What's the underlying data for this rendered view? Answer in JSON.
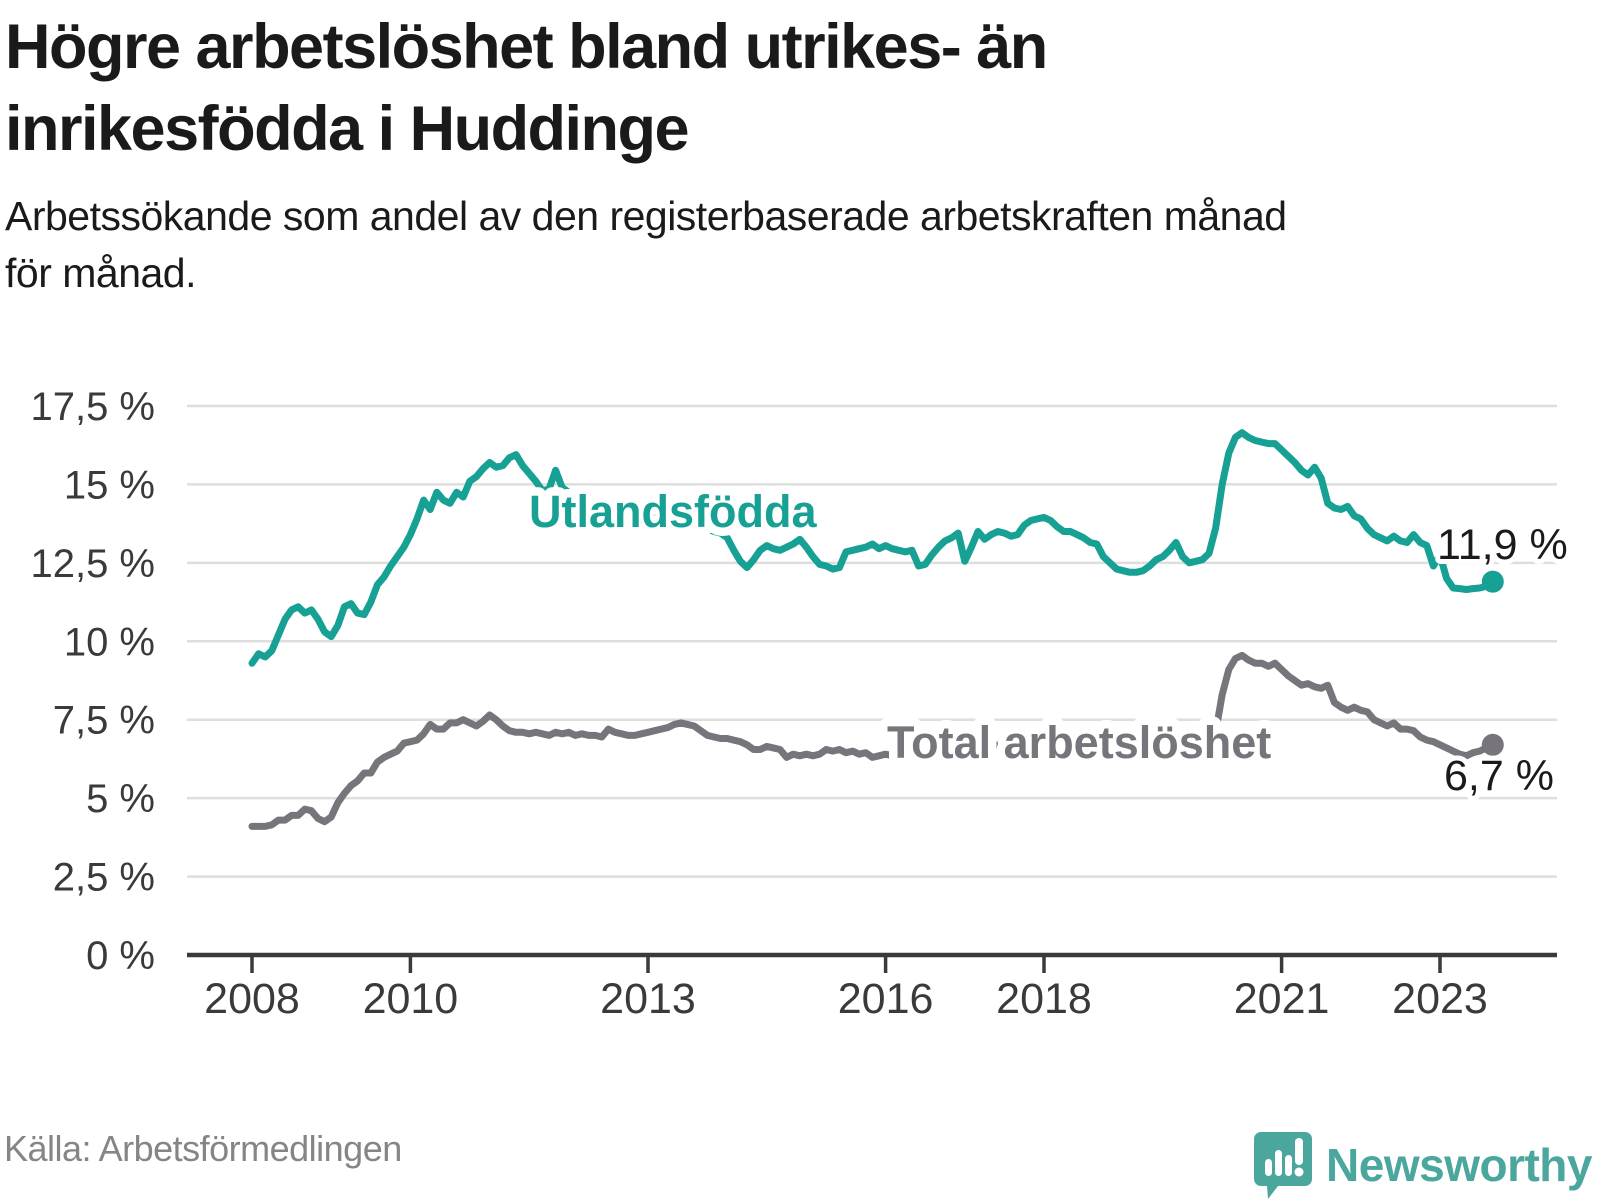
{
  "header": {
    "title_line1": "Högre arbetslöshet bland utrikes- än",
    "title_line2": "inrikesfödda i Huddinge",
    "subtitle_line1": "Arbetssökande som andel av den registerbaserade arbetskraften månad",
    "subtitle_line2": "för månad."
  },
  "footer": {
    "source": "Källa: Arbetsförmedlingen",
    "brand_name": "Newsworthy"
  },
  "colors": {
    "foreign_born_line": "#17A094",
    "total_line": "#77757B",
    "annotation_text": "#1a1a1a",
    "axis_text": "#3a3a3a",
    "axis_line": "#3a3a3a",
    "gridline": "#dedede",
    "source_text": "#858585",
    "brand_teal": "#4BA79E",
    "background": "#ffffff"
  },
  "chart_data": {
    "type": "line",
    "frequency": "monthly",
    "start_year": 2008,
    "start_month": 1,
    "end_year": 2023,
    "end_month": 9,
    "grid": true,
    "legend": "inline-labels",
    "ylim": [
      0,
      17.5
    ],
    "y_axis": {
      "ticks": [
        {
          "value": 17.5,
          "label": "17,5 %"
        },
        {
          "value": 15,
          "label": "15 %"
        },
        {
          "value": 12.5,
          "label": "12,5 %"
        },
        {
          "value": 10,
          "label": "10 %"
        },
        {
          "value": 7.5,
          "label": "7,5 %"
        },
        {
          "value": 5,
          "label": "5 %"
        },
        {
          "value": 2.5,
          "label": "2,5 %"
        },
        {
          "value": 0,
          "label": "0 %"
        }
      ]
    },
    "x_axis": {
      "ticks": [
        {
          "year": 2008,
          "label": "2008"
        },
        {
          "year": 2010,
          "label": "2010"
        },
        {
          "year": 2013,
          "label": "2013"
        },
        {
          "year": 2016,
          "label": "2016"
        },
        {
          "year": 2018,
          "label": "2018"
        },
        {
          "year": 2021,
          "label": "2021"
        },
        {
          "year": 2023,
          "label": "2023"
        }
      ]
    },
    "series": [
      {
        "name": "Utlandsfödda",
        "color": "#17A094",
        "end_value": 11.9,
        "end_label": "11,9 %",
        "values": [
          9.3,
          9.6,
          9.5,
          9.7,
          10.2,
          10.7,
          11.0,
          11.1,
          10.9,
          11.0,
          10.7,
          10.3,
          10.15,
          10.5,
          11.1,
          11.2,
          10.9,
          10.85,
          11.25,
          11.8,
          12.05,
          12.4,
          12.7,
          13.0,
          13.4,
          13.9,
          14.5,
          14.2,
          14.75,
          14.5,
          14.4,
          14.75,
          14.6,
          15.1,
          15.25,
          15.5,
          15.7,
          15.55,
          15.6,
          15.85,
          15.95,
          15.6,
          15.35,
          15.1,
          14.8,
          14.85,
          15.45,
          14.9,
          14.75,
          14.7,
          14.64,
          14.58,
          14.53,
          14.47,
          14.42,
          14.36,
          14.3,
          14.25,
          14.19,
          14.14,
          14.08,
          14.02,
          13.97,
          13.91,
          13.86,
          13.8,
          13.74,
          13.69,
          13.63,
          13.58,
          13.5,
          13.45,
          13.3,
          12.9,
          12.55,
          12.35,
          12.6,
          12.9,
          13.05,
          12.95,
          12.9,
          13.0,
          13.1,
          13.25,
          13.0,
          12.7,
          12.45,
          12.4,
          12.3,
          12.35,
          12.85,
          12.9,
          12.95,
          13.0,
          13.1,
          12.95,
          13.05,
          12.95,
          12.9,
          12.85,
          12.9,
          12.4,
          12.45,
          12.75,
          13.0,
          13.2,
          13.3,
          13.45,
          12.55,
          13.0,
          13.5,
          13.25,
          13.4,
          13.5,
          13.45,
          13.35,
          13.4,
          13.7,
          13.85,
          13.9,
          13.95,
          13.85,
          13.65,
          13.5,
          13.5,
          13.4,
          13.3,
          13.15,
          13.1,
          12.7,
          12.5,
          12.3,
          12.25,
          12.2,
          12.2,
          12.25,
          12.4,
          12.6,
          12.7,
          12.9,
          13.15,
          12.7,
          12.5,
          12.55,
          12.6,
          12.8,
          13.6,
          15.0,
          16.0,
          16.5,
          16.65,
          16.5,
          16.4,
          16.35,
          16.3,
          16.3,
          16.1,
          15.9,
          15.7,
          15.45,
          15.3,
          15.55,
          15.2,
          14.4,
          14.25,
          14.2,
          14.3,
          14.0,
          13.9,
          13.6,
          13.4,
          13.3,
          13.2,
          13.35,
          13.2,
          13.15,
          13.4,
          13.15,
          13.05,
          12.4,
          12.75,
          12.0,
          11.7,
          11.68,
          11.65,
          11.68,
          11.7,
          11.75,
          11.9
        ]
      },
      {
        "name": "Total arbetslöshet",
        "color": "#77757B",
        "end_value": 6.7,
        "end_label": "6,7 %",
        "values": [
          4.1,
          4.1,
          4.1,
          4.15,
          4.3,
          4.3,
          4.45,
          4.45,
          4.65,
          4.6,
          4.35,
          4.25,
          4.4,
          4.85,
          5.15,
          5.4,
          5.55,
          5.8,
          5.8,
          6.15,
          6.3,
          6.4,
          6.5,
          6.75,
          6.8,
          6.85,
          7.05,
          7.35,
          7.2,
          7.2,
          7.4,
          7.4,
          7.5,
          7.4,
          7.3,
          7.45,
          7.65,
          7.5,
          7.3,
          7.15,
          7.1,
          7.1,
          7.05,
          7.1,
          7.05,
          7.0,
          7.1,
          7.05,
          7.1,
          7.0,
          7.05,
          7.0,
          7.0,
          6.95,
          7.2,
          7.1,
          7.05,
          7.0,
          7.0,
          7.05,
          7.1,
          7.15,
          7.2,
          7.25,
          7.35,
          7.4,
          7.35,
          7.3,
          7.15,
          7.0,
          6.95,
          6.9,
          6.9,
          6.85,
          6.8,
          6.7,
          6.55,
          6.55,
          6.65,
          6.6,
          6.55,
          6.3,
          6.4,
          6.35,
          6.4,
          6.35,
          6.4,
          6.55,
          6.5,
          6.55,
          6.45,
          6.5,
          6.4,
          6.45,
          6.3,
          6.35,
          6.4,
          6.35,
          6.3,
          6.3,
          6.25,
          6.3,
          6.35,
          6.3,
          6.25,
          6.3,
          6.35,
          6.4,
          6.45,
          6.5,
          6.55,
          6.6,
          6.65,
          6.7,
          6.75,
          6.8,
          6.75,
          6.7,
          6.65,
          6.6,
          6.6,
          6.55,
          6.5,
          6.45,
          6.4,
          6.35,
          6.3,
          6.3,
          6.25,
          6.25,
          6.2,
          6.2,
          6.2,
          6.2,
          6.25,
          6.25,
          6.3,
          6.3,
          6.35,
          6.35,
          6.3,
          6.3,
          6.35,
          6.4,
          6.5,
          6.6,
          7.1,
          8.3,
          9.1,
          9.45,
          9.55,
          9.4,
          9.3,
          9.3,
          9.2,
          9.3,
          9.1,
          8.9,
          8.75,
          8.6,
          8.65,
          8.55,
          8.5,
          8.6,
          8.05,
          7.9,
          7.8,
          7.9,
          7.8,
          7.75,
          7.5,
          7.4,
          7.3,
          7.4,
          7.2,
          7.2,
          7.15,
          6.95,
          6.85,
          6.8,
          6.7,
          6.6,
          6.5,
          6.4,
          6.35,
          6.45,
          6.5,
          6.6,
          6.7
        ]
      }
    ]
  }
}
